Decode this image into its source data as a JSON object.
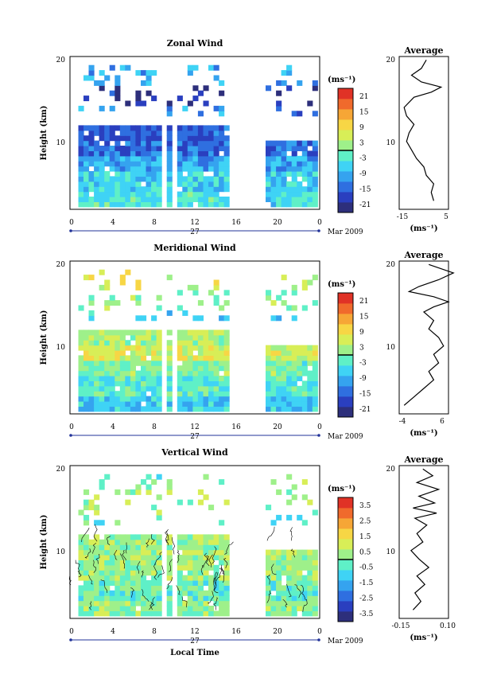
{
  "colorbar_unit": "(ms⁻¹)",
  "x_axis": {
    "ticks": [
      "0",
      "4",
      "8",
      "12",
      "16",
      "20",
      "0"
    ],
    "day_label": "27",
    "date_label": "Mar 2009",
    "xlabel": "Local Time"
  },
  "panels": [
    {
      "title": "Zonal Wind",
      "ylabel": "Height (km)",
      "yticks": [
        "10",
        "20"
      ],
      "colorbar_ticks": [
        "21",
        "15",
        "9",
        "3",
        "-3",
        "-9",
        "-15",
        "-21"
      ],
      "avg_title": "Average",
      "avg_xticks": [
        "-15",
        "5"
      ],
      "avg_unit": "(ms⁻¹)"
    },
    {
      "title": "Meridional Wind",
      "ylabel": "Height (km)",
      "yticks": [
        "10",
        "20"
      ],
      "colorbar_ticks": [
        "21",
        "15",
        "9",
        "3",
        "-3",
        "-9",
        "-15",
        "-21"
      ],
      "avg_title": "Average",
      "avg_xticks": [
        "-4",
        "6"
      ],
      "avg_unit": "(ms⁻¹)"
    },
    {
      "title": "Vertical Wind",
      "ylabel": "Height (km)",
      "yticks": [
        "10",
        "20"
      ],
      "colorbar_ticks": [
        "3.5",
        "2.5",
        "1.5",
        "0.5",
        "-0.5",
        "-1.5",
        "-2.5",
        "-3.5"
      ],
      "avg_title": "Average",
      "avg_xticks": [
        "-0.15",
        "0.10"
      ],
      "avg_unit": "(ms⁻¹)"
    }
  ],
  "chart_data": [
    {
      "type": "heatmap",
      "title": "Zonal Wind",
      "xlabel": "Local Time",
      "ylabel": "Height (km)",
      "xlim": [
        0,
        24
      ],
      "ylim": [
        2,
        20
      ],
      "clim": [
        -24,
        24
      ],
      "colorbar_ticks": [
        21,
        15,
        9,
        3,
        -3,
        -9,
        -15,
        -21
      ],
      "data_gaps_hours": [
        [
          8.8,
          9.2
        ],
        [
          9.6,
          10.0
        ],
        [
          15,
          18.8
        ]
      ],
      "height_km": [
        3,
        5,
        7,
        9,
        11,
        13,
        15,
        17
      ],
      "mean_wind_ms": [
        -4,
        -6,
        -9,
        -14,
        -16,
        -12,
        -20,
        -8
      ]
    },
    {
      "type": "line",
      "title": "Average",
      "xlim": [
        -15,
        5
      ],
      "ylim": [
        2,
        20
      ],
      "x": [
        -1,
        -2,
        -1,
        -4,
        -5,
        -8,
        -10,
        -12,
        -11,
        -9,
        -12,
        -13,
        -11,
        -9,
        -2,
        2,
        -6,
        -10,
        -6,
        -4
      ],
      "y": [
        3,
        4,
        5,
        6,
        7,
        8,
        9,
        10,
        11,
        12,
        13,
        14,
        14.6,
        15.2,
        15.8,
        16.4,
        17,
        17.8,
        18.6,
        19.6
      ]
    },
    {
      "type": "heatmap",
      "title": "Meridional Wind",
      "xlabel": "Local Time",
      "ylabel": "Height (km)",
      "xlim": [
        0,
        24
      ],
      "ylim": [
        2,
        20
      ],
      "clim": [
        -24,
        24
      ],
      "colorbar_ticks": [
        21,
        15,
        9,
        3,
        -3,
        -9,
        -15,
        -21
      ],
      "data_gaps_hours": [
        [
          8.8,
          9.2
        ],
        [
          9.6,
          10.0
        ],
        [
          15,
          18.8
        ]
      ],
      "height_km": [
        3,
        5,
        7,
        9,
        11,
        13,
        15,
        17
      ],
      "mean_wind_ms": [
        -6,
        -3,
        0,
        6,
        3,
        -6,
        0,
        6
      ]
    },
    {
      "type": "line",
      "title": "Average",
      "xlim": [
        -4,
        6
      ],
      "ylim": [
        2,
        20
      ],
      "x": [
        -3,
        -1,
        1,
        3,
        2,
        4,
        3,
        5,
        4,
        2,
        3,
        1,
        3,
        6,
        3,
        -2,
        0,
        4,
        7,
        2
      ],
      "y": [
        3,
        4,
        5,
        6,
        7,
        8,
        9,
        10,
        11,
        12,
        13,
        14,
        14.6,
        15.2,
        15.8,
        16.4,
        17,
        17.8,
        18.6,
        19.6
      ]
    },
    {
      "type": "heatmap",
      "title": "Vertical Wind",
      "xlabel": "Local Time",
      "ylabel": "Height (km)",
      "xlim": [
        0,
        24
      ],
      "ylim": [
        2,
        20
      ],
      "clim": [
        -4,
        4
      ],
      "colorbar_ticks": [
        3.5,
        2.5,
        1.5,
        0.5,
        -0.5,
        -1.5,
        -2.5,
        -3.5
      ],
      "data_gaps_hours": [
        [
          8.8,
          9.2
        ],
        [
          9.6,
          10.0
        ],
        [
          15,
          18.8
        ]
      ],
      "height_km": [
        3,
        5,
        7,
        9,
        11,
        13,
        15,
        17
      ],
      "mean_wind_ms": [
        0.1,
        -0.2,
        0.3,
        0.5,
        0.2,
        -0.3,
        0.4,
        0.1
      ]
    },
    {
      "type": "line",
      "title": "Average",
      "xlim": [
        -0.15,
        0.1
      ],
      "ylim": [
        2,
        20
      ],
      "x": [
        -0.08,
        -0.04,
        -0.07,
        -0.02,
        -0.06,
        0.0,
        -0.05,
        -0.09,
        -0.03,
        -0.06,
        -0.01,
        -0.07,
        0.04,
        -0.08,
        0.03,
        -0.05,
        0.05,
        -0.06,
        0.02,
        -0.03
      ],
      "y": [
        3,
        4,
        5,
        6,
        7,
        8,
        9,
        10,
        11,
        12,
        13,
        13.8,
        14.4,
        15,
        15.6,
        16.4,
        17.2,
        18,
        18.8,
        19.6
      ]
    }
  ],
  "colors": {
    "colormap": [
      "#2d2f7b",
      "#2a3fbf",
      "#2f6fe0",
      "#35a3ef",
      "#3fd3f5",
      "#5ff0c7",
      "#9ef08a",
      "#d8ee57",
      "#f7d645",
      "#f6a636",
      "#f06a2c",
      "#e03226"
    ],
    "line": "#000000",
    "axis": "#000000",
    "date_axis": "#223399"
  }
}
